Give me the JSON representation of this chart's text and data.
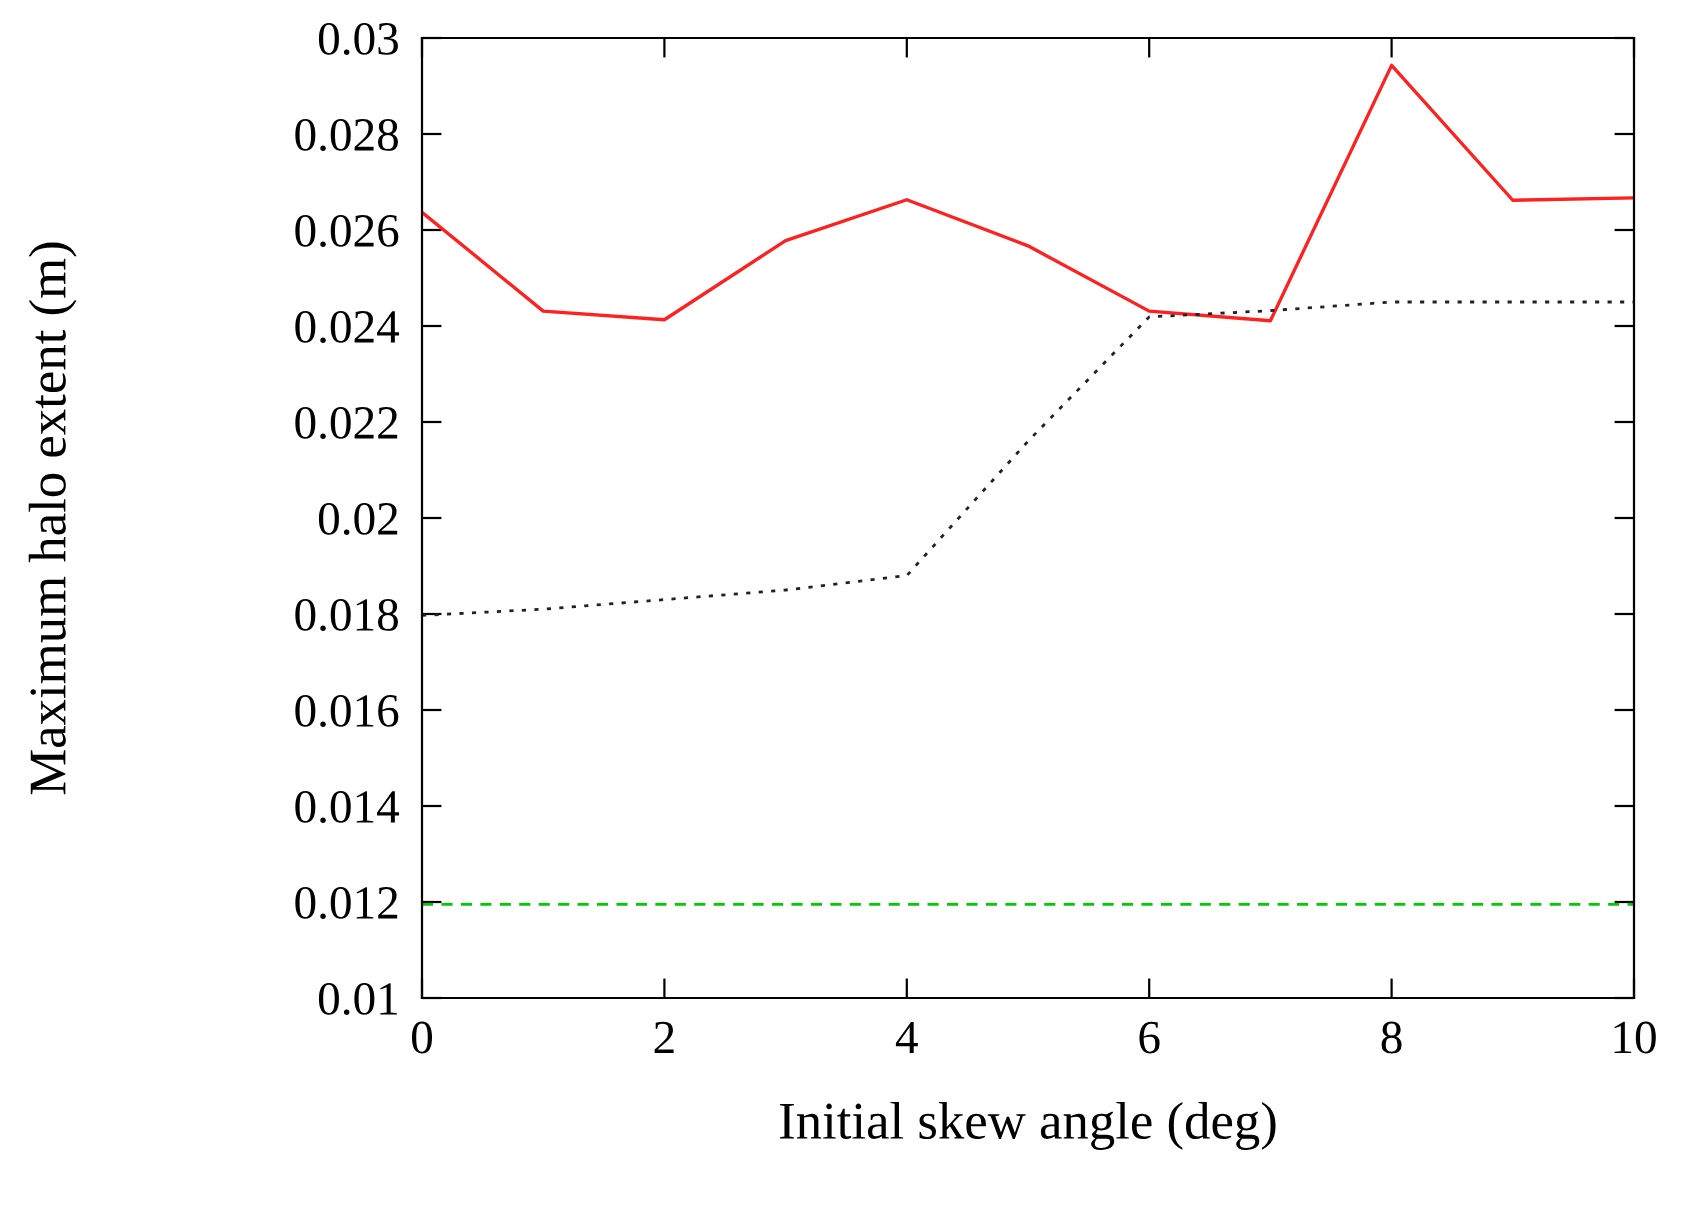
{
  "chart_data": {
    "type": "line",
    "xlabel": "Initial skew angle (deg)",
    "ylabel": "Maximum halo extent (m)",
    "x": [
      0,
      1,
      2,
      3,
      4,
      5,
      6,
      7,
      8,
      9,
      10
    ],
    "series": [
      {
        "color": "#ff2020",
        "line_style": "solid",
        "values": [
          0.02637,
          0.02431,
          0.02413,
          0.02578,
          0.02663,
          0.02567,
          0.02431,
          0.02411,
          0.02943,
          0.02662,
          0.02667
        ]
      },
      {
        "color": "#222222",
        "line_style": "dotted",
        "values": [
          0.01797,
          0.0181,
          0.0183,
          0.0185,
          0.0188,
          0.0216,
          0.02419,
          0.02432,
          0.0245,
          0.0245,
          0.0245
        ]
      },
      {
        "color": "#00cc00",
        "line_style": "dashed",
        "values": [
          0.01195,
          0.01195,
          0.01195,
          0.01195,
          0.01195,
          0.01195,
          0.01195,
          0.01195,
          0.01195,
          0.01195,
          0.01195
        ]
      }
    ],
    "xlim": [
      0,
      10
    ],
    "xticks": [
      0,
      2,
      4,
      6,
      8,
      10
    ],
    "ylim": [
      0.01,
      0.03
    ],
    "yticks": [
      0.01,
      0.012,
      0.014,
      0.016,
      0.018,
      0.02,
      0.022,
      0.024,
      0.026,
      0.028,
      0.03
    ],
    "marker": "none"
  }
}
